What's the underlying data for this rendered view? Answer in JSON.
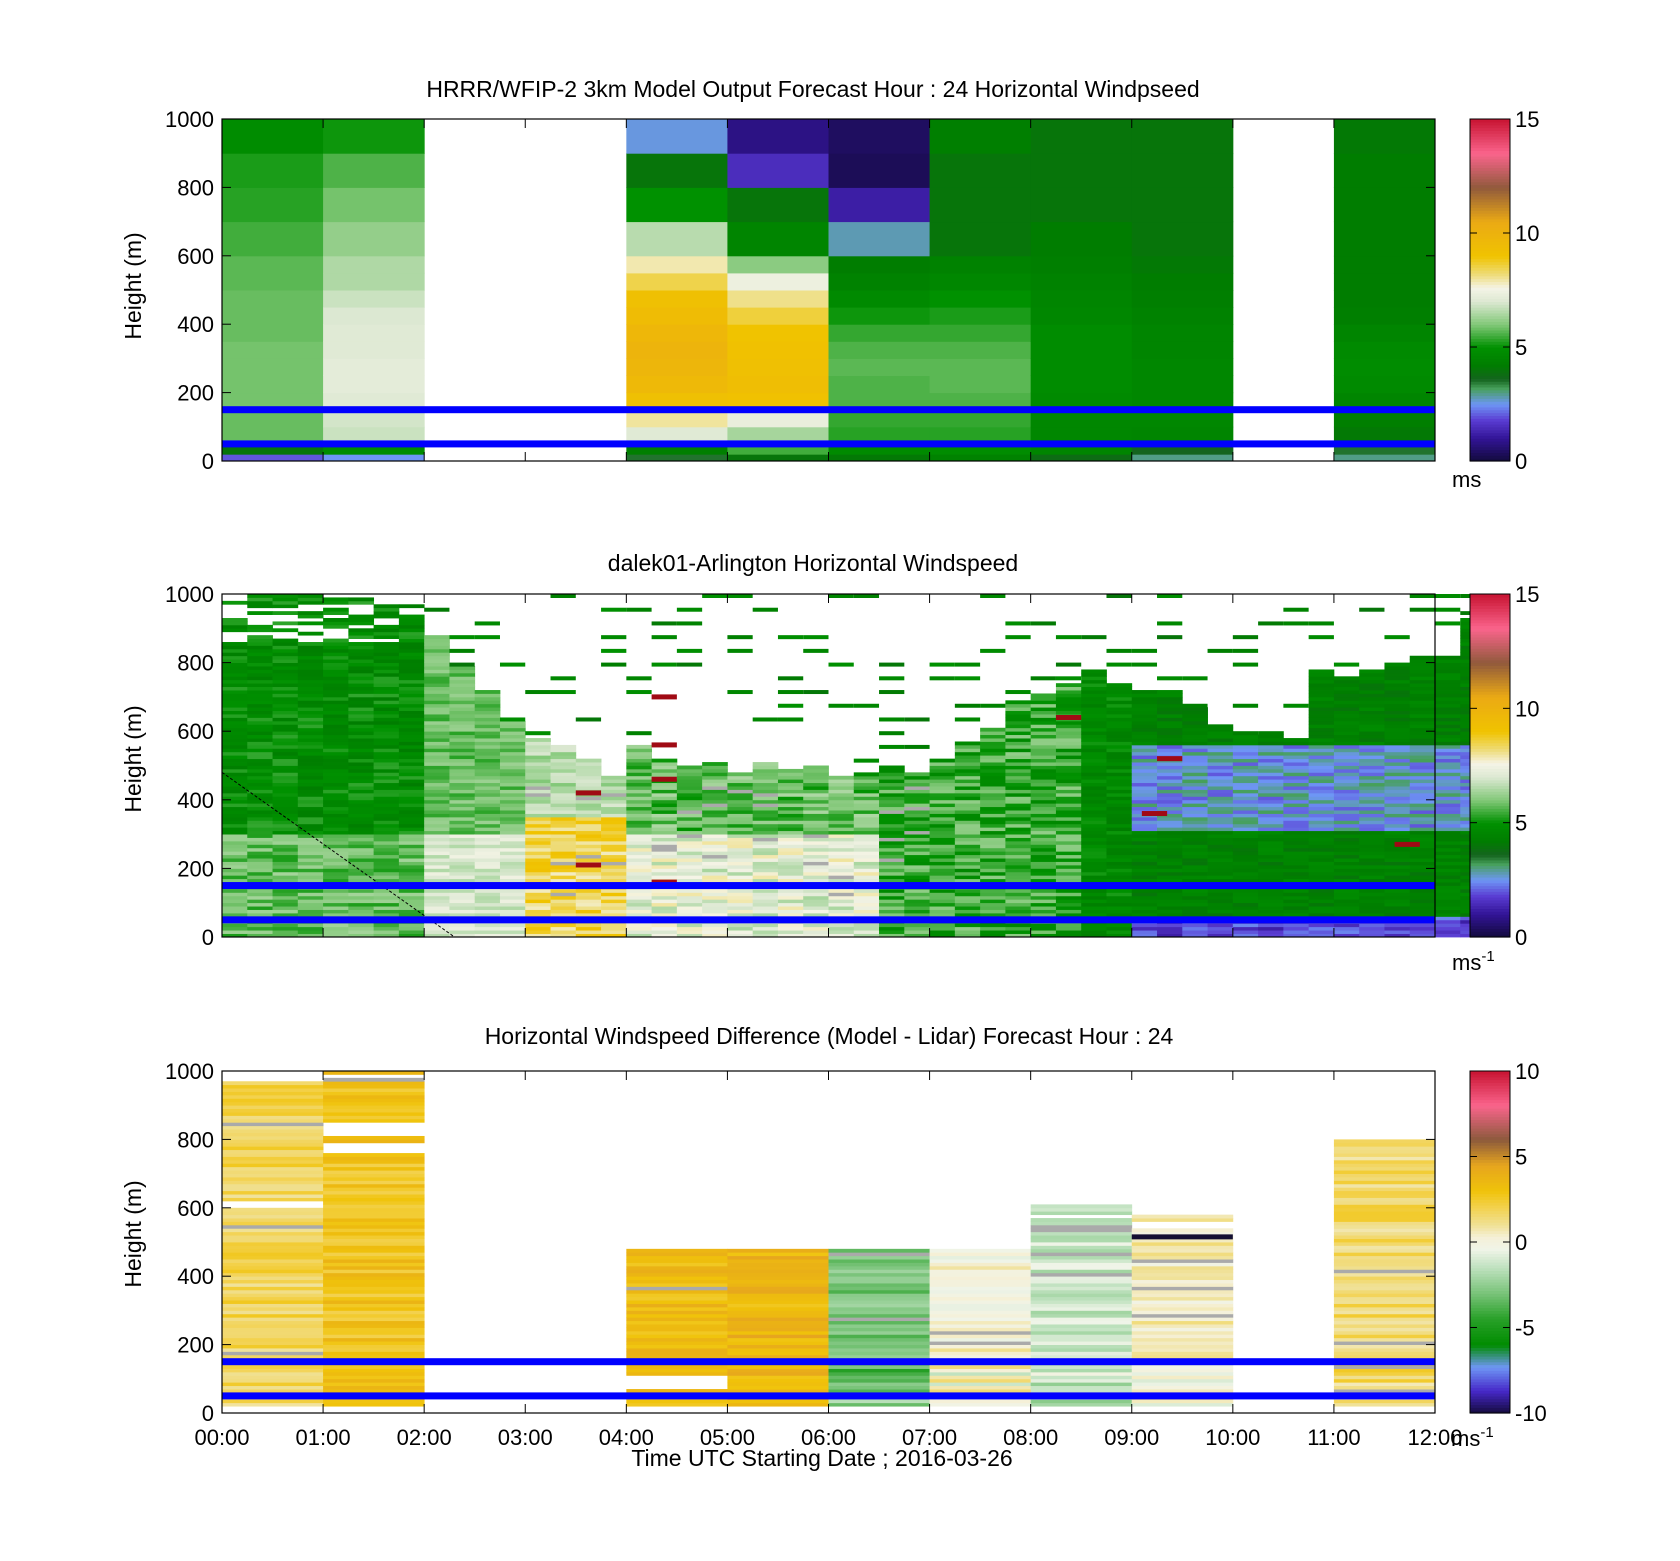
{
  "chart_data": [
    {
      "type": "heatmap",
      "title": "HRRR/WFIP-2 3km Model Output   Forecast Hour : 24 Horizontal Windpseed",
      "ylabel": "Height (m)",
      "xlabel": "",
      "xlim": [
        0,
        12
      ],
      "ylim": [
        0,
        1000
      ],
      "yticks": [
        "0",
        "200",
        "400",
        "600",
        "800",
        "1000"
      ],
      "xtick_labels_shown": false,
      "colorbar": {
        "min": 0,
        "max": 15,
        "ticks": [
          "0",
          "5",
          "10",
          "15"
        ],
        "unit_label": "ms",
        "unit_sup": ""
      },
      "reference_lines_m": [
        50,
        150
      ],
      "reference_line_color": "#0000ff",
      "bins_m": [
        [
          0,
          20
        ],
        [
          20,
          50
        ],
        [
          50,
          100
        ],
        [
          100,
          150
        ],
        [
          150,
          200
        ],
        [
          200,
          250
        ],
        [
          250,
          300
        ],
        [
          300,
          350
        ],
        [
          350,
          400
        ],
        [
          400,
          450
        ],
        [
          450,
          500
        ],
        [
          500,
          550
        ],
        [
          550,
          600
        ],
        [
          600,
          700
        ],
        [
          700,
          800
        ],
        [
          800,
          900
        ],
        [
          900,
          1000
        ]
      ],
      "columns": [
        {
          "hour": 0,
          "values": [
            2,
            4,
            5.8,
            5.8,
            5.9,
            5.9,
            5.9,
            5.9,
            5.8,
            5.8,
            5.8,
            5.7,
            5.7,
            5.5,
            5.3,
            5.2,
            4.8
          ]
        },
        {
          "hour": 1,
          "values": [
            2.5,
            4.8,
            6.8,
            6.9,
            7.1,
            7.2,
            7.2,
            7.1,
            7.1,
            7,
            6.8,
            6.5,
            6.5,
            6.2,
            5.9,
            5.6,
            5.1
          ]
        },
        {
          "hour": 4,
          "values": [
            3.5,
            4.3,
            7.1,
            8,
            9.2,
            9.6,
            9.8,
            9.9,
            9.7,
            9.4,
            9.2,
            8.5,
            7.9,
            6.6,
            5,
            4,
            2.6
          ]
        },
        {
          "hour": 5,
          "values": [
            4,
            5.5,
            6.4,
            7.3,
            9.1,
            9.3,
            9.2,
            9.1,
            9,
            8.6,
            8.1,
            7.4,
            6.1,
            4.5,
            4,
            1.5,
            0.8
          ]
        },
        {
          "hour": 6,
          "values": [
            4.1,
            4.7,
            5.3,
            5.4,
            5.6,
            5.6,
            5.7,
            5.6,
            5.4,
            5.1,
            4.7,
            4.4,
            4.2,
            2.8,
            1.2,
            0.3,
            0.4
          ]
        },
        {
          "hour": 7,
          "values": [
            4.4,
            4.8,
            5.3,
            5.4,
            5.6,
            5.7,
            5.7,
            5.6,
            5.4,
            5.2,
            5,
            4.6,
            4.4,
            4,
            4,
            4,
            4.3
          ]
        },
        {
          "hour": 8,
          "values": [
            3.8,
            4.5,
            4.6,
            4.6,
            4.7,
            4.8,
            4.8,
            4.8,
            4.8,
            4.6,
            4.5,
            4.4,
            4.3,
            4.2,
            4,
            4,
            4
          ]
        },
        {
          "hour": 9,
          "values": [
            3,
            3.6,
            4.5,
            4.6,
            4.6,
            4.6,
            4.6,
            4.5,
            4.5,
            4.4,
            4.3,
            4.2,
            4.1,
            4,
            4,
            4,
            4
          ]
        },
        {
          "hour": 11,
          "values": [
            3,
            3.5,
            4.1,
            4.3,
            4.5,
            4.7,
            4.8,
            4.7,
            4.5,
            4.3,
            4.2,
            4.2,
            4.2,
            4.2,
            4.2,
            4.2,
            4.1
          ]
        }
      ]
    },
    {
      "type": "heatmap",
      "title": "dalek01-Arlington  Horizontal Windspeed",
      "ylabel": "Height (m)",
      "xlabel": "",
      "xlim": [
        0,
        12
      ],
      "ylim": [
        0,
        1000
      ],
      "yticks": [
        "0",
        "200",
        "400",
        "600",
        "800",
        "1000"
      ],
      "xtick_labels_shown": false,
      "colorbar": {
        "min": 0,
        "max": 15,
        "ticks": [
          "0",
          "5",
          "10",
          "15"
        ],
        "unit_label": "ms",
        "unit_sup": "-1"
      },
      "reference_lines_m": [
        50,
        150
      ],
      "reference_line_color": "#0000ff",
      "time_step_h": 0.25,
      "range_gate_m": 10,
      "data_top_m": [
        1000,
        1000,
        1000,
        1000,
        1000,
        1000,
        1000,
        990,
        880,
        790,
        720,
        630,
        580,
        560,
        520,
        470,
        560,
        520,
        500,
        510,
        480,
        510,
        490,
        500,
        470,
        470,
        500,
        480,
        520,
        570,
        610,
        690,
        710,
        740,
        780,
        740,
        720,
        720,
        670,
        620,
        590,
        600,
        580,
        780,
        760,
        780,
        800,
        820,
        820,
        970
      ],
      "anomaly_heights_m": [
        160,
        210,
        270,
        360,
        420,
        460,
        520,
        560,
        640,
        700
      ],
      "colorscale_note": "same colormap as model panel, 0-15 m/s"
    },
    {
      "type": "heatmap",
      "title": "Horizontal Windspeed Difference (Model - Lidar) Forecast Hour : 24",
      "ylabel": "Height (m)",
      "xlabel": "Time UTC  Starting Date ; 2016-03-26",
      "xlim": [
        0,
        12
      ],
      "ylim": [
        0,
        1000
      ],
      "yticks": [
        "0",
        "200",
        "400",
        "600",
        "800",
        "1000"
      ],
      "xticks": [
        "00:00",
        "01:00",
        "02:00",
        "03:00",
        "04:00",
        "05:00",
        "06:00",
        "07:00",
        "08:00",
        "09:00",
        "10:00",
        "11:00",
        "12:00"
      ],
      "colorbar": {
        "min": -10,
        "max": 10,
        "ticks": [
          "-10",
          "-5",
          "0",
          "5",
          "10"
        ],
        "unit_label": "ms",
        "unit_sup": "-1"
      },
      "reference_lines_m": [
        50,
        150
      ],
      "reference_line_color": "#0000ff",
      "columns": [
        {
          "hour": 0,
          "top_m": 970,
          "mean": 1.8,
          "gaps_m": [
            [
              600,
              620
            ]
          ]
        },
        {
          "hour": 1,
          "top_m": 1000,
          "mean": 2.9,
          "gaps_m": [
            [
              980,
              990
            ],
            [
              810,
              850
            ],
            [
              760,
              790
            ]
          ]
        },
        {
          "hour": 4,
          "top_m": 480,
          "mean": 3.2,
          "gaps_m": [
            [
              70,
              110
            ]
          ]
        },
        {
          "hour": 5,
          "top_m": 480,
          "mean": 3.6,
          "gaps_m": []
        },
        {
          "hour": 6,
          "top_m": 480,
          "mean": -3.0,
          "gaps_m": []
        },
        {
          "hour": 7,
          "top_m": 480,
          "mean": 0.2,
          "gaps_m": []
        },
        {
          "hour": 8,
          "top_m": 610,
          "mean": -1.3,
          "gaps_m": [
            [
              570,
              580
            ]
          ]
        },
        {
          "hour": 9,
          "top_m": 580,
          "mean": 0.6,
          "gaps_m": [
            [
              540,
              560
            ]
          ]
        },
        {
          "hour": 11,
          "top_m": 800,
          "mean": 1.6,
          "gaps_m": []
        }
      ]
    }
  ]
}
